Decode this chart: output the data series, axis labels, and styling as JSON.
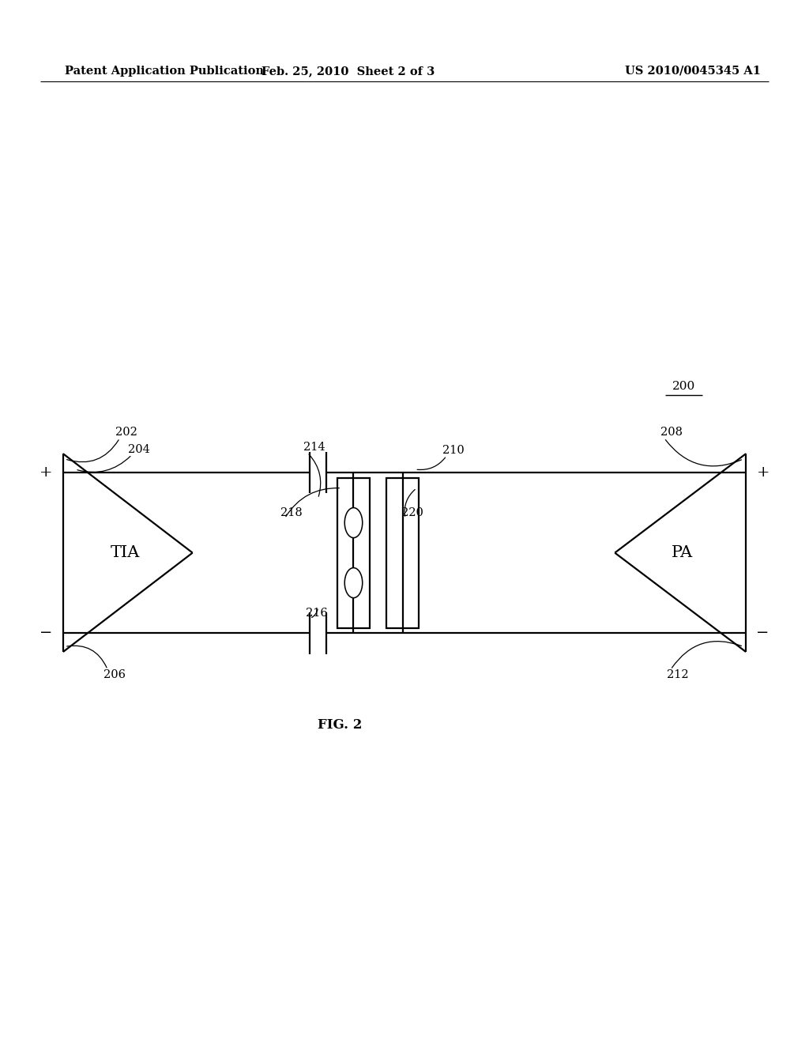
{
  "header_left": "Patent Application Publication",
  "header_mid": "Feb. 25, 2010  Sheet 2 of 3",
  "header_right": "US 2010/0045345 A1",
  "fig_label": "FIG. 2",
  "circuit_label": "200",
  "tia_label": "TIA",
  "pa_label": "PA",
  "bg_color": "#ffffff",
  "line_color": "#000000",
  "lw": 1.6
}
